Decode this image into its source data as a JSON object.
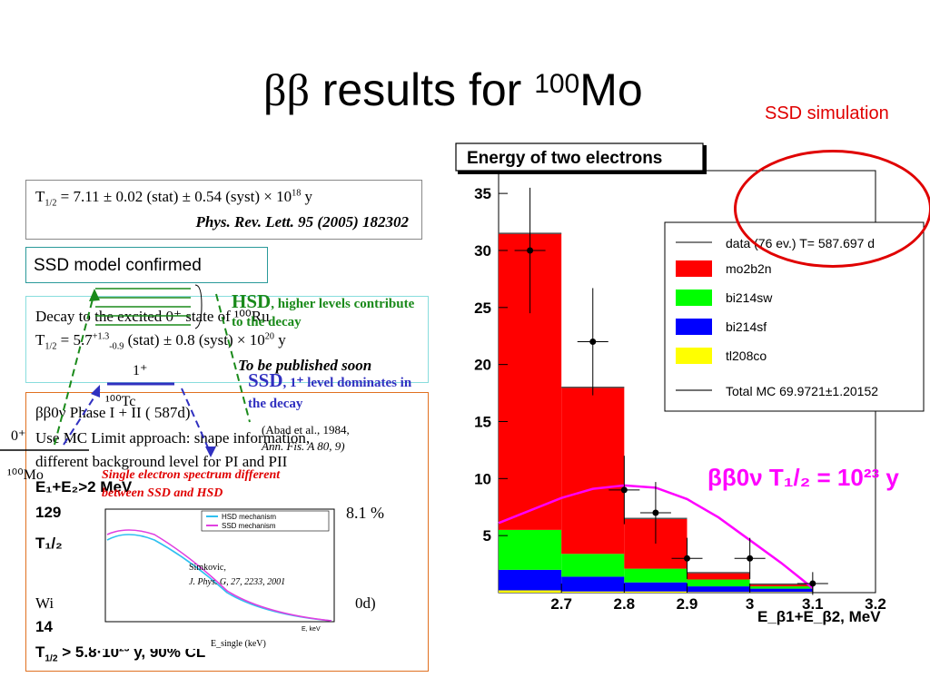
{
  "slide": {
    "title_symbol": "ββ",
    "title_text": " results for ",
    "title_mass": "100",
    "title_element": "Mo",
    "ssd_simulation_label": "SSD simulation"
  },
  "halflife_box": {
    "line1_a": "T",
    "line1_sub": "1/2",
    "line1_b": " = 7.11 ± 0.02 (stat) ± 0.54 (syst) × 10",
    "line1_exp": "18",
    "line1_c": " y",
    "reference": "Phys. Rev. Lett. 95 (2005) 182302"
  },
  "model_box": {
    "text": "SSD model confirmed"
  },
  "excited_box": {
    "line1": "Decay to the excited 0⁺ state of ¹⁰⁰Ru",
    "line2_a": "T",
    "line2_sub": "1/2",
    "line2_b": " = 5.7",
    "line2_up": "+1.3",
    "line2_down": "-0.9",
    "line2_c": " (stat) ± 0.8 (syst) × 10",
    "line2_exp": "20",
    "line2_d": " y",
    "publish_note": "To be published soon"
  },
  "phase_box": {
    "line1": "ββ0ν Phase I + II ( 587d)",
    "line2": "Use MC Limit approach: shape information,",
    "line3": "different background level for PI and PII",
    "line4": "E₁+E₂>2 MeV",
    "line5_a": "129",
    "line5_b": "8.1 %",
    "line6": "T₁/₂",
    "line7_a": "Wi",
    "line7_b": "0d)",
    "line8": "14",
    "line9_a": "T",
    "line9_sub": "1/2",
    "line9_b": " > 5.8·10",
    "line9_exp": "23",
    "line9_c": " y, 90% CL"
  },
  "decay_scheme": {
    "hsd_label": "HSD",
    "hsd_note": ", higher levels contribute to the decay",
    "ssd_label": "SSD",
    "ssd_note": ", 1⁺ level dominates in the decay",
    "level_1plus": "1⁺",
    "tc_label": "¹⁰⁰Tc",
    "mo_ground": "0⁺",
    "mo_label": "¹⁰⁰Mo",
    "abad_ref": "(Abad et al., 1984,",
    "abad_ref2": "Ann. Fis. A 80, 9)",
    "colors": {
      "green": "#1a8a1a",
      "blue": "#3030c0"
    }
  },
  "single_electron": {
    "note_line1": "Single electron spectrum different",
    "note_line2": "between SSD and HSD",
    "legend_hsd": "HSD mechanism",
    "legend_ssd": "SSD mechanism",
    "ref_author": "Simkovic,",
    "ref_journal": "J. Phys. G, 27, 2233, 2001",
    "xlabel": "E, keV",
    "axis_bottom": "E_single (keV)",
    "colors": {
      "hsd": "#30c0f0",
      "ssd": "#e040e0"
    }
  },
  "chart_data": {
    "type": "bar",
    "title": "Energy of two electrons",
    "xlabel": "E_β1+E_β2, MeV",
    "ylabel": "",
    "xlim": [
      2.6,
      3.2
    ],
    "ylim": [
      0,
      37
    ],
    "x_ticks": [
      "2.7",
      "2.8",
      "2.9",
      "3",
      "3.1",
      "3.2"
    ],
    "y_ticks": [
      "5",
      "10",
      "15",
      "20",
      "25",
      "30",
      "35"
    ],
    "bin_edges": [
      2.6,
      2.7,
      2.8,
      2.9,
      3.0,
      3.1
    ],
    "series": [
      {
        "name": "tl208co",
        "color": "#ffff00",
        "values": [
          0.2,
          0.1,
          0.1,
          0.05,
          0.05
        ]
      },
      {
        "name": "bi214sf",
        "color": "#0000ff",
        "values": [
          1.8,
          1.3,
          0.8,
          0.5,
          0.3
        ]
      },
      {
        "name": "bi214sw",
        "color": "#00ff00",
        "values": [
          3.5,
          2.0,
          1.2,
          0.6,
          0.2
        ]
      },
      {
        "name": "mo2b2n",
        "color": "#ff0000",
        "values": [
          26.0,
          14.6,
          4.4,
          0.6,
          0.2
        ]
      }
    ],
    "total_mc_legend": "Total MC 69.9721±1.20152",
    "data_legend": "data (76 ev.) T= 587.697 d",
    "data_points": {
      "x": [
        2.65,
        2.75,
        2.8,
        2.85,
        2.9,
        3.0,
        3.1
      ],
      "y": [
        30,
        22,
        9,
        7,
        3,
        3,
        0.8
      ],
      "yerr": [
        5.5,
        4.7,
        3,
        2.7,
        1.8,
        1.8,
        1
      ]
    },
    "signal_curve_label": "ββ0ν T₁/₂ = 10²³ y",
    "signal_color": "#ff00ff",
    "signal_curve": {
      "x": [
        2.6,
        2.7,
        2.75,
        2.8,
        2.85,
        2.9,
        2.95,
        3.0,
        3.05,
        3.1
      ],
      "y": [
        6.1,
        8.3,
        9.1,
        9.4,
        9.2,
        8.2,
        6.6,
        4.6,
        2.6,
        0.4
      ]
    }
  }
}
